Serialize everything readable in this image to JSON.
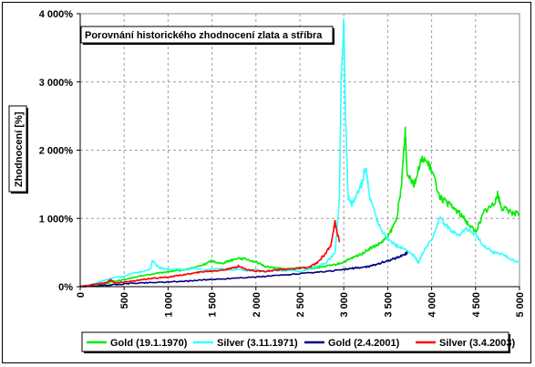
{
  "chart_data": {
    "type": "line",
    "title": "Porovnání historického zhodnocení zlata a stříbra",
    "ylabel": "Zhodnocení [%]",
    "xlabel": "",
    "xlim": [
      0,
      5000
    ],
    "ylim": [
      0,
      4000
    ],
    "x_ticks": [
      "0",
      "500",
      "1 000",
      "1 500",
      "2 000",
      "2 500",
      "3 000",
      "3 500",
      "4 000",
      "4 500",
      "5 000"
    ],
    "y_ticks": [
      "0%",
      "1 000%",
      "2 000%",
      "3 000%",
      "4 000%"
    ],
    "grid": true,
    "legend_position": "bottom",
    "series": [
      {
        "name": "Gold (19.1.1970)",
        "color": "#00ee00",
        "points": [
          [
            0,
            0
          ],
          [
            100,
            10
          ],
          [
            200,
            30
          ],
          [
            300,
            50
          ],
          [
            400,
            80
          ],
          [
            500,
            100
          ],
          [
            600,
            130
          ],
          [
            700,
            160
          ],
          [
            800,
            180
          ],
          [
            900,
            200
          ],
          [
            1000,
            220
          ],
          [
            1100,
            230
          ],
          [
            1200,
            250
          ],
          [
            1300,
            280
          ],
          [
            1400,
            320
          ],
          [
            1500,
            380
          ],
          [
            1600,
            340
          ],
          [
            1700,
            380
          ],
          [
            1800,
            420
          ],
          [
            1900,
            400
          ],
          [
            2000,
            360
          ],
          [
            2100,
            300
          ],
          [
            2200,
            280
          ],
          [
            2300,
            260
          ],
          [
            2400,
            260
          ],
          [
            2500,
            280
          ],
          [
            2600,
            260
          ],
          [
            2700,
            280
          ],
          [
            2800,
            300
          ],
          [
            2900,
            320
          ],
          [
            3000,
            360
          ],
          [
            3100,
            420
          ],
          [
            3200,
            480
          ],
          [
            3300,
            560
          ],
          [
            3400,
            620
          ],
          [
            3500,
            720
          ],
          [
            3600,
            980
          ],
          [
            3650,
            1400
          ],
          [
            3700,
            2300
          ],
          [
            3720,
            1700
          ],
          [
            3800,
            1500
          ],
          [
            3900,
            1900
          ],
          [
            4000,
            1700
          ],
          [
            4100,
            1300
          ],
          [
            4200,
            1200
          ],
          [
            4300,
            1100
          ],
          [
            4400,
            950
          ],
          [
            4500,
            800
          ],
          [
            4600,
            1100
          ],
          [
            4700,
            1200
          ],
          [
            4750,
            1350
          ],
          [
            4800,
            1150
          ],
          [
            4900,
            1100
          ],
          [
            5000,
            1050
          ]
        ]
      },
      {
        "name": "Silver (3.11.1971)",
        "color": "#33ffff",
        "points": [
          [
            0,
            0
          ],
          [
            100,
            20
          ],
          [
            200,
            60
          ],
          [
            300,
            100
          ],
          [
            400,
            140
          ],
          [
            500,
            150
          ],
          [
            600,
            200
          ],
          [
            700,
            220
          ],
          [
            800,
            260
          ],
          [
            820,
            380
          ],
          [
            900,
            280
          ],
          [
            1000,
            250
          ],
          [
            1100,
            260
          ],
          [
            1200,
            240
          ],
          [
            1300,
            270
          ],
          [
            1400,
            240
          ],
          [
            1500,
            250
          ],
          [
            1600,
            270
          ],
          [
            1700,
            240
          ],
          [
            1800,
            250
          ],
          [
            1900,
            230
          ],
          [
            2000,
            250
          ],
          [
            2100,
            220
          ],
          [
            2200,
            250
          ],
          [
            2300,
            230
          ],
          [
            2400,
            240
          ],
          [
            2500,
            220
          ],
          [
            2600,
            260
          ],
          [
            2700,
            300
          ],
          [
            2800,
            350
          ],
          [
            2900,
            500
          ],
          [
            2950,
            1300
          ],
          [
            2970,
            3000
          ],
          [
            3000,
            3850
          ],
          [
            3020,
            2500
          ],
          [
            3050,
            1300
          ],
          [
            3100,
            1200
          ],
          [
            3200,
            1500
          ],
          [
            3250,
            1750
          ],
          [
            3300,
            1300
          ],
          [
            3400,
            900
          ],
          [
            3500,
            700
          ],
          [
            3600,
            600
          ],
          [
            3700,
            550
          ],
          [
            3800,
            450
          ],
          [
            3850,
            350
          ],
          [
            3900,
            500
          ],
          [
            4000,
            700
          ],
          [
            4100,
            1000
          ],
          [
            4200,
            850
          ],
          [
            4300,
            750
          ],
          [
            4400,
            850
          ],
          [
            4500,
            750
          ],
          [
            4600,
            600
          ],
          [
            4700,
            500
          ],
          [
            4800,
            480
          ],
          [
            4900,
            400
          ],
          [
            5000,
            350
          ]
        ]
      },
      {
        "name": "Gold (2.4.2001)",
        "color": "#000080",
        "points": [
          [
            0,
            0
          ],
          [
            200,
            10
          ],
          [
            400,
            30
          ],
          [
            600,
            50
          ],
          [
            800,
            60
          ],
          [
            1000,
            70
          ],
          [
            1200,
            80
          ],
          [
            1400,
            100
          ],
          [
            1600,
            110
          ],
          [
            1800,
            130
          ],
          [
            2000,
            140
          ],
          [
            2200,
            160
          ],
          [
            2400,
            180
          ],
          [
            2600,
            200
          ],
          [
            2800,
            220
          ],
          [
            3000,
            250
          ],
          [
            3100,
            270
          ],
          [
            3200,
            280
          ],
          [
            3300,
            300
          ],
          [
            3400,
            340
          ],
          [
            3500,
            380
          ],
          [
            3600,
            420
          ],
          [
            3700,
            480
          ],
          [
            3720,
            500
          ]
        ]
      },
      {
        "name": "Silver (3.4.2003)",
        "color": "#ff0000",
        "points": [
          [
            0,
            0
          ],
          [
            100,
            20
          ],
          [
            200,
            40
          ],
          [
            300,
            60
          ],
          [
            350,
            100
          ],
          [
            400,
            50
          ],
          [
            500,
            70
          ],
          [
            600,
            80
          ],
          [
            700,
            100
          ],
          [
            800,
            120
          ],
          [
            900,
            130
          ],
          [
            1000,
            140
          ],
          [
            1100,
            160
          ],
          [
            1200,
            180
          ],
          [
            1300,
            200
          ],
          [
            1400,
            220
          ],
          [
            1500,
            230
          ],
          [
            1600,
            240
          ],
          [
            1700,
            260
          ],
          [
            1800,
            300
          ],
          [
            1900,
            250
          ],
          [
            2000,
            230
          ],
          [
            2100,
            220
          ],
          [
            2200,
            240
          ],
          [
            2300,
            250
          ],
          [
            2400,
            260
          ],
          [
            2500,
            270
          ],
          [
            2600,
            280
          ],
          [
            2700,
            350
          ],
          [
            2800,
            500
          ],
          [
            2850,
            600
          ],
          [
            2900,
            950
          ],
          [
            2950,
            650
          ]
        ]
      }
    ]
  }
}
